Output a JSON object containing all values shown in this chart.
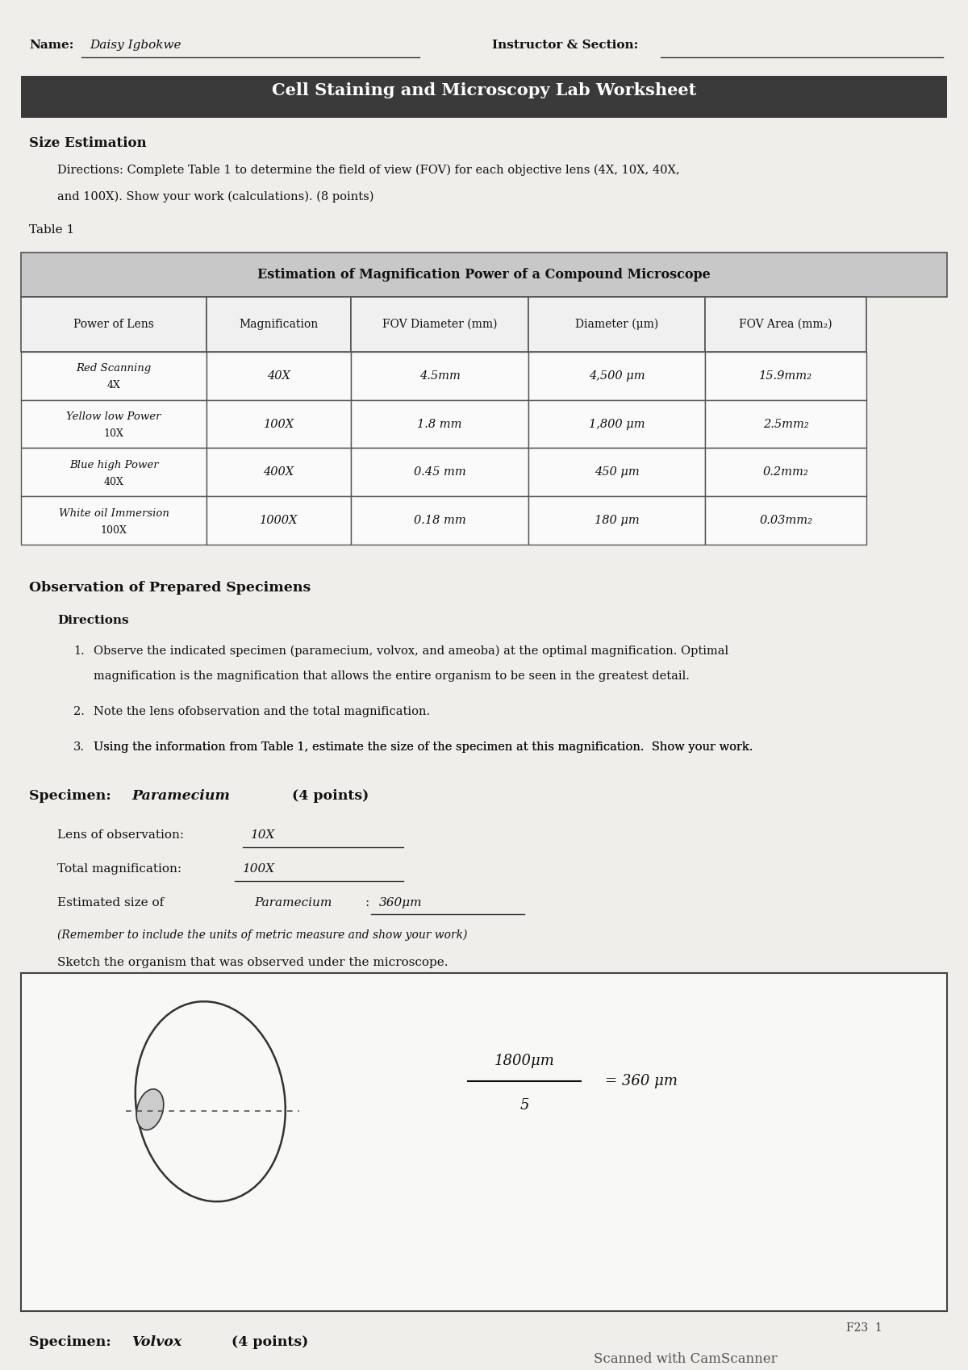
{
  "bg_color": "#e8e8e8",
  "page_bg": "#f0eeeb",
  "title_bar_color": "#3a3a3a",
  "title_text": "Cell Staining and Microscopy Lab Worksheet",
  "title_text_color": "#ffffff",
  "name_label": "Name:",
  "name_value": "Daisy Igbokwe",
  "instructor_label": "Instructor & Section:",
  "section1_header": "Size Estimation",
  "directions_text": "Directions: Complete Table 1 to determine the field of view (FOV) for each objective lens (4X, 10X, 40X,\n    and 100X). Show your work (calculations). (8 points)",
  "table1_label": "Table 1",
  "table_title": "Estimation of Magnification Power of a Compound Microscope",
  "table_header": [
    "Power of Lens",
    "Magnification",
    "FOV Diameter (mm)",
    "Diameter (μm)",
    "FOV Area (mm₂)"
  ],
  "table_rows": [
    [
      "Red Scanning\n4X",
      "40X",
      "4.5mm",
      "4,500 μm",
      "15.9mm₂"
    ],
    [
      "Yellow low Power\n10X",
      "100X",
      "1.8 mm",
      "1,800 μm",
      "2.5mm₂"
    ],
    [
      "Blue high Power\n40X",
      "400X",
      "0.45 mm",
      "450 μm",
      "0.2mm₂"
    ],
    [
      "White oil Immersion\n100X",
      "1000X",
      "0.18 mm",
      "180 μm",
      "0.03mm₂"
    ]
  ],
  "section2_header": "Observation of Prepared Specimens",
  "directions2_label": "Directions",
  "directions2_items": [
    "Observe the indicated specimen (paramecium, volvox, and ameoba) at the optimal magnification. Optimal\n       magnification is the magnification that allows the entire organism to be seen in the greatest detail.",
    "Note the lens ofobservation and the total magnification.",
    "Using the information from Table 1, estimate the size of the specimen at this magnification.  Show your work."
  ],
  "specimen1_header": "Specimen: Paramecium (4 points)",
  "lens_label": "Lens of observation:",
  "lens_value": "10X",
  "total_mag_label": "Total magnification:",
  "total_mag_value": "100X",
  "est_size_label": "Estimated size of",
  "est_size_italic": "Paramecium",
  "est_size_colon": ":",
  "est_size_value": "360μm",
  "remember_text": "(Remember to include the units of metric measure and show your work)",
  "sketch_label": "Sketch the organism that was observed under the microscope.",
  "calc_text": "1800μm\n——————  = 360 μm\n    5",
  "specimen2_header": "Specimen: Volvox (4 points)",
  "footer_text": "F23  1",
  "scanner_text": "Scanned with CamScanner",
  "table_header_bg": "#c8c8c8",
  "table_row_bg": "#ffffff",
  "table_border_color": "#555555"
}
